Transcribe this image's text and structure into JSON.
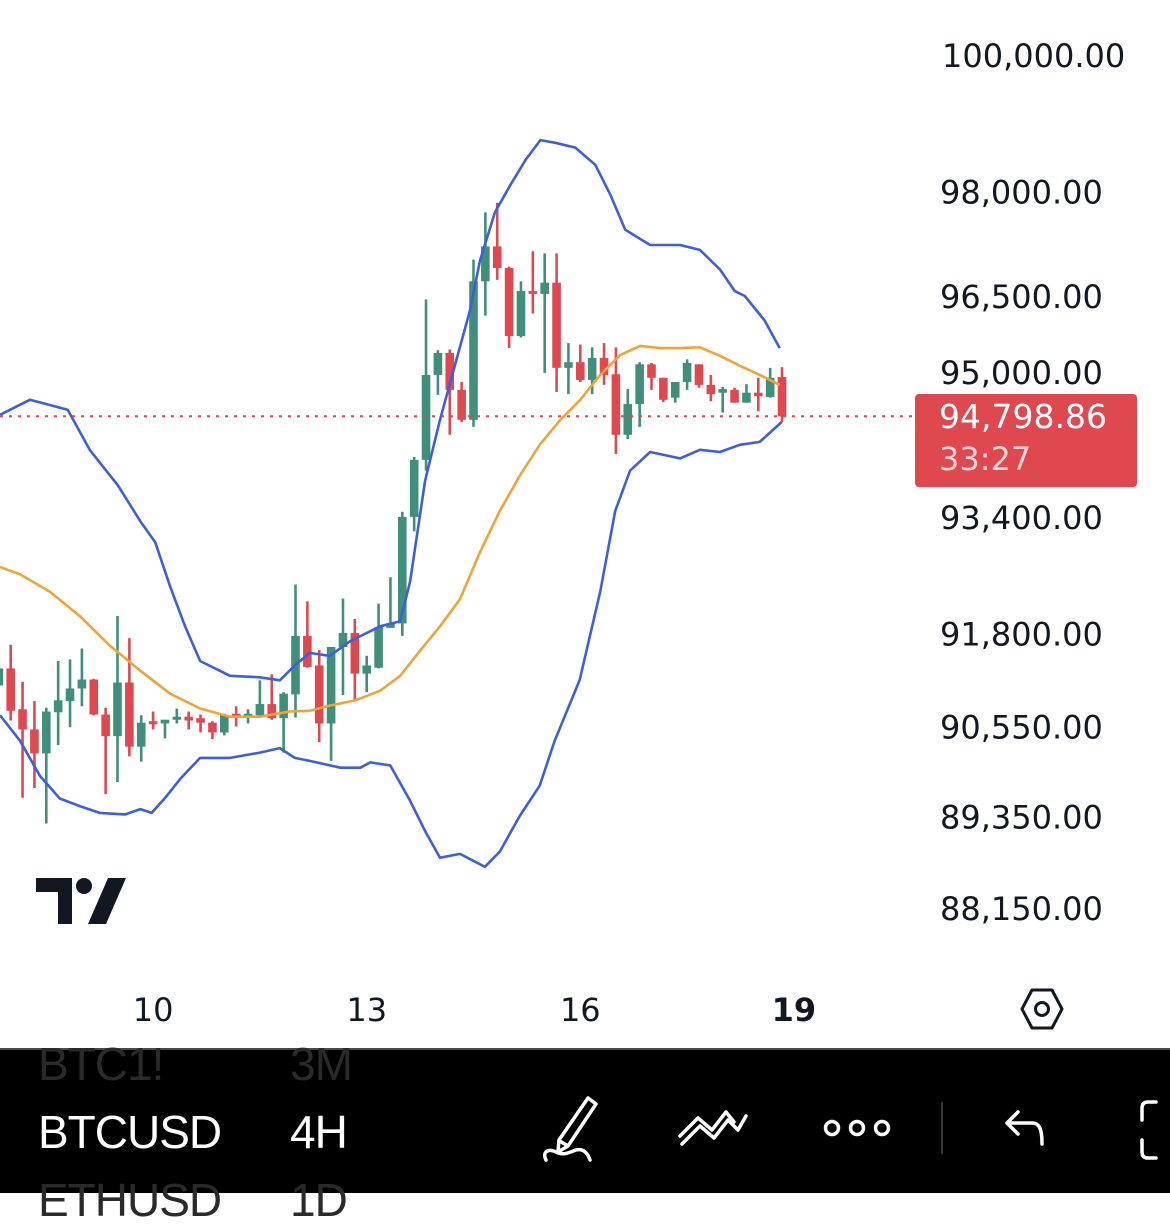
{
  "symbol": {
    "previous": "BTC1!",
    "previous_interval": "3M",
    "current": "BTCUSD",
    "current_interval": "4H",
    "next": "ETHUSD",
    "next_interval": "1D"
  },
  "price_label": {
    "price": "94,798.86",
    "countdown": "33:27"
  },
  "toolbar_icons": [
    "pencil-draw-icon",
    "trend-line-tool-icon",
    "more-dots-icon",
    "undo-icon",
    "fullscreen-icon"
  ],
  "colors": {
    "up": "#3f8f7b",
    "down": "#e0484f",
    "bb_band": "#3d5fdc",
    "bb_basis": "#f0a33a",
    "last_price": "#e0484f",
    "toolbar_bg": "#000000"
  },
  "chart_data": {
    "type": "candlestick",
    "y_scale": "log",
    "ylim": [
      87800,
      100400
    ],
    "y_ticks": [
      {
        "value": 100000,
        "label": "100,000.00"
      },
      {
        "value": 98000,
        "label": "98,000.00"
      },
      {
        "value": 96500,
        "label": "96,500.00"
      },
      {
        "value": 95000,
        "label": "95,000.00"
      },
      {
        "value": 93400,
        "label": "93,400.00"
      },
      {
        "value": 91800,
        "label": "91,800.00"
      },
      {
        "value": 90550,
        "label": "90,550.00"
      },
      {
        "value": 89350,
        "label": "89,350.00"
      },
      {
        "value": 88150,
        "label": "88,150.00"
      }
    ],
    "x_ticks": [
      {
        "day": 10,
        "label": "10",
        "bold": false
      },
      {
        "day": 13,
        "label": "13",
        "bold": false
      },
      {
        "day": 16,
        "label": "16",
        "bold": false
      },
      {
        "day": 19,
        "label": "19",
        "bold": true
      }
    ],
    "interval": "4H",
    "last_price": 94798.86,
    "candles_ohlc": [
      [
        "7 20:00",
        91100,
        91370,
        91100,
        91330
      ],
      [
        "8 00:00",
        91330,
        91650,
        90630,
        90760
      ],
      [
        "8 04:00",
        90780,
        91150,
        89600,
        90510
      ],
      [
        "8 08:00",
        90510,
        90890,
        89730,
        90190
      ],
      [
        "8 12:00",
        90190,
        90800,
        89260,
        90750
      ],
      [
        "8 16:00",
        90740,
        91430,
        90300,
        90900
      ],
      [
        "8 20:00",
        90890,
        91450,
        90540,
        91060
      ],
      [
        "9 00:00",
        91060,
        91600,
        90820,
        91180
      ],
      [
        "9 04:00",
        91180,
        91190,
        90700,
        90710
      ],
      [
        "9 08:00",
        90710,
        90800,
        89650,
        90420
      ],
      [
        "9 12:00",
        90420,
        92040,
        89810,
        91140
      ],
      [
        "9 16:00",
        91140,
        91740,
        90150,
        90280
      ],
      [
        "9 20:00",
        90280,
        90700,
        90080,
        90600
      ],
      [
        "10 00:00",
        90620,
        90750,
        90510,
        90580
      ],
      [
        "10 04:00",
        90590,
        90640,
        90390,
        90640
      ],
      [
        "10 08:00",
        90640,
        90790,
        90590,
        90680
      ],
      [
        "10 12:00",
        90680,
        90750,
        90510,
        90630
      ],
      [
        "10 16:00",
        90660,
        90710,
        90470,
        90600
      ],
      [
        "10 20:00",
        90600,
        90620,
        90380,
        90470
      ],
      [
        "11 00:00",
        90470,
        90720,
        90430,
        90700
      ],
      [
        "11 04:00",
        90720,
        90820,
        90550,
        90680
      ],
      [
        "11 08:00",
        90680,
        90780,
        90590,
        90720
      ],
      [
        "11 12:00",
        90700,
        91170,
        90670,
        90850
      ],
      [
        "11 16:00",
        90850,
        91250,
        90640,
        90660
      ],
      [
        "11 20:00",
        90660,
        91010,
        90200,
        90990
      ],
      [
        "12 00:00",
        90980,
        92470,
        90670,
        91770
      ],
      [
        "12 04:00",
        91770,
        92240,
        91340,
        91350
      ],
      [
        "12 08:00",
        91370,
        91580,
        90340,
        90590
      ],
      [
        "12 12:00",
        90590,
        91620,
        90090,
        91620
      ],
      [
        "12 16:00",
        91620,
        92280,
        90970,
        91810
      ],
      [
        "12 20:00",
        91810,
        92000,
        90900,
        91260
      ],
      [
        "13 00:00",
        91260,
        91500,
        91010,
        91370
      ],
      [
        "13 04:00",
        91340,
        92210,
        91330,
        91890
      ],
      [
        "13 08:00",
        91880,
        92570,
        91880,
        91940
      ],
      [
        "13 12:00",
        91940,
        93470,
        91770,
        93400
      ],
      [
        "13 16:00",
        93400,
        94230,
        93200,
        94190
      ],
      [
        "13 20:00",
        94190,
        96450,
        94040,
        95380
      ],
      [
        "14 00:00",
        95380,
        95730,
        95100,
        95690
      ],
      [
        "14 04:00",
        95690,
        95740,
        94540,
        95170
      ],
      [
        "14 08:00",
        95170,
        95280,
        94720,
        94750
      ],
      [
        "14 12:00",
        94750,
        97020,
        94650,
        96710
      ],
      [
        "14 16:00",
        96710,
        97700,
        96220,
        97210
      ],
      [
        "14 20:00",
        97210,
        97840,
        96730,
        96900
      ],
      [
        "15 00:00",
        96900,
        96920,
        95760,
        95930
      ],
      [
        "15 04:00",
        95930,
        96710,
        95910,
        96570
      ],
      [
        "15 08:00",
        96570,
        97140,
        96250,
        96530
      ],
      [
        "15 12:00",
        96530,
        97110,
        95410,
        96690
      ],
      [
        "15 16:00",
        96690,
        97110,
        95140,
        95480
      ],
      [
        "15 20:00",
        95480,
        95830,
        95110,
        95560
      ],
      [
        "16 00:00",
        95560,
        95810,
        95280,
        95310
      ],
      [
        "16 04:00",
        95310,
        95770,
        95110,
        95620
      ],
      [
        "16 08:00",
        95620,
        95830,
        95240,
        95380
      ],
      [
        "16 12:00",
        95390,
        95770,
        94270,
        94540
      ],
      [
        "16 16:00",
        94540,
        95180,
        94480,
        94970
      ],
      [
        "16 20:00",
        94970,
        95560,
        94650,
        95530
      ],
      [
        "17 00:00",
        95530,
        95550,
        95170,
        95340
      ],
      [
        "17 04:00",
        95340,
        95340,
        95000,
        95030
      ],
      [
        "17 08:00",
        95060,
        95280,
        94990,
        95280
      ],
      [
        "17 12:00",
        95280,
        95600,
        95170,
        95550
      ],
      [
        "17 16:00",
        95530,
        95530,
        95200,
        95240
      ],
      [
        "17 20:00",
        95240,
        95380,
        95010,
        95110
      ],
      [
        "18 00:00",
        95130,
        95210,
        94850,
        95180
      ],
      [
        "18 04:00",
        95170,
        95200,
        94990,
        94990
      ],
      [
        "18 08:00",
        94990,
        95250,
        94990,
        95130
      ],
      [
        "18 12:00",
        95130,
        95340,
        94870,
        95080
      ],
      [
        "18 16:00",
        95070,
        95480,
        95060,
        95340
      ],
      [
        "18 20:00",
        95350,
        95490,
        94720,
        94798.86
      ]
    ],
    "bollinger_upper": [
      [
        7.85,
        94820
      ],
      [
        8.27,
        95030
      ],
      [
        8.8,
        94890
      ],
      [
        9.11,
        94330
      ],
      [
        9.51,
        93830
      ],
      [
        9.82,
        93340
      ],
      [
        10.03,
        93050
      ],
      [
        10.24,
        92440
      ],
      [
        10.45,
        91900
      ],
      [
        10.66,
        91430
      ],
      [
        11.08,
        91230
      ],
      [
        11.5,
        91210
      ],
      [
        11.78,
        91170
      ],
      [
        11.99,
        91370
      ],
      [
        12.2,
        91540
      ],
      [
        12.48,
        91500
      ],
      [
        12.77,
        91700
      ],
      [
        13.19,
        91900
      ],
      [
        13.47,
        91970
      ],
      [
        13.61,
        92510
      ],
      [
        13.82,
        93900
      ],
      [
        14.03,
        94750
      ],
      [
        14.24,
        95520
      ],
      [
        14.45,
        96290
      ],
      [
        14.59,
        97000
      ],
      [
        14.8,
        97700
      ],
      [
        15.02,
        98100
      ],
      [
        15.23,
        98460
      ],
      [
        15.44,
        98750
      ],
      [
        15.65,
        98710
      ],
      [
        15.93,
        98640
      ],
      [
        16.21,
        98390
      ],
      [
        16.42,
        97960
      ],
      [
        16.63,
        97450
      ],
      [
        16.98,
        97230
      ],
      [
        17.4,
        97230
      ],
      [
        17.68,
        97160
      ],
      [
        17.96,
        96880
      ],
      [
        18.17,
        96570
      ],
      [
        18.31,
        96500
      ],
      [
        18.59,
        96150
      ],
      [
        18.8,
        95760
      ]
    ],
    "bollinger_basis": [
      [
        7.85,
        92710
      ],
      [
        8.13,
        92610
      ],
      [
        8.55,
        92370
      ],
      [
        8.97,
        92040
      ],
      [
        9.39,
        91640
      ],
      [
        9.82,
        91300
      ],
      [
        10.24,
        90990
      ],
      [
        10.66,
        90790
      ],
      [
        11.08,
        90680
      ],
      [
        11.5,
        90680
      ],
      [
        11.92,
        90750
      ],
      [
        12.2,
        90760
      ],
      [
        12.48,
        90830
      ],
      [
        12.84,
        90900
      ],
      [
        13.19,
        91030
      ],
      [
        13.47,
        91230
      ],
      [
        13.75,
        91570
      ],
      [
        14.03,
        91900
      ],
      [
        14.31,
        92270
      ],
      [
        14.59,
        92910
      ],
      [
        14.87,
        93480
      ],
      [
        15.15,
        93970
      ],
      [
        15.43,
        94400
      ],
      [
        15.72,
        94750
      ],
      [
        16.0,
        95030
      ],
      [
        16.28,
        95380
      ],
      [
        16.56,
        95660
      ],
      [
        16.84,
        95790
      ],
      [
        17.12,
        95760
      ],
      [
        17.4,
        95760
      ],
      [
        17.68,
        95770
      ],
      [
        17.96,
        95650
      ],
      [
        18.24,
        95510
      ],
      [
        18.52,
        95380
      ],
      [
        18.8,
        95240
      ]
    ],
    "bollinger_lower": [
      [
        7.85,
        90700
      ],
      [
        8.13,
        90360
      ],
      [
        8.41,
        89890
      ],
      [
        8.69,
        89590
      ],
      [
        8.97,
        89490
      ],
      [
        9.25,
        89400
      ],
      [
        9.61,
        89380
      ],
      [
        9.82,
        89450
      ],
      [
        9.98,
        89400
      ],
      [
        10.17,
        89600
      ],
      [
        10.38,
        89850
      ],
      [
        10.66,
        90130
      ],
      [
        11.08,
        90130
      ],
      [
        11.5,
        90200
      ],
      [
        11.78,
        90260
      ],
      [
        11.99,
        90130
      ],
      [
        12.2,
        90090
      ],
      [
        12.63,
        90000
      ],
      [
        12.91,
        90000
      ],
      [
        13.05,
        90070
      ],
      [
        13.33,
        90030
      ],
      [
        13.61,
        89560
      ],
      [
        13.82,
        89160
      ],
      [
        14.03,
        88810
      ],
      [
        14.31,
        88860
      ],
      [
        14.66,
        88690
      ],
      [
        14.87,
        88890
      ],
      [
        15.15,
        89360
      ],
      [
        15.43,
        89760
      ],
      [
        15.64,
        90360
      ],
      [
        15.99,
        91170
      ],
      [
        16.28,
        92370
      ],
      [
        16.49,
        93480
      ],
      [
        16.7,
        94040
      ],
      [
        16.98,
        94300
      ],
      [
        17.4,
        94210
      ],
      [
        17.68,
        94330
      ],
      [
        17.96,
        94300
      ],
      [
        18.24,
        94400
      ],
      [
        18.52,
        94440
      ],
      [
        18.83,
        94720
      ]
    ]
  }
}
